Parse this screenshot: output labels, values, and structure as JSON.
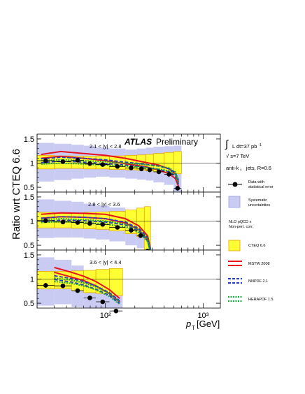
{
  "colors": {
    "data_marker": "#000000",
    "systematic_band": "#c9cbf3",
    "systematic_band_edge": "#9a9ee6",
    "cteq_band": "#ffff33",
    "cteq_band_edge": "#e8a000",
    "mstw": "#e8121f",
    "nnpdf": "#1f3fc4",
    "herapdf": "#11a83a"
  },
  "labels": {
    "ylabel": "Ratio wrt CTEQ 6.6",
    "xlabel_p": "p",
    "xlabel_sub": "T",
    "xlabel_unit": "[GeV]",
    "atlas": "ATLAS",
    "preliminary": "Preliminary",
    "lumi_integral": "∫",
    "lumi_text": "L dt=37 pb",
    "lumi_sup": "-1",
    "sqrt": "√",
    "energy": "s=7 TeV",
    "algo_prefix": "anti-k",
    "algo_sub": "t",
    "algo_suffix": "jets,  R=0.6",
    "nlo_line1": "NLO pQCD x",
    "nlo_line2": "Non-pert. corr."
  },
  "legend": {
    "data_line1": "Data with",
    "data_line2": "statistical error",
    "syst_line1": "Systematic",
    "syst_line2": "uncertainties",
    "cteq": "CTEQ 6.6",
    "mstw": "MSTW 2008",
    "nnpdf": "NNPDF 2.1",
    "hera": "HERAPDF 1.5"
  },
  "chart_data": {
    "type": "scatter",
    "x_scale": "log",
    "xlim": [
      20,
      1500
    ],
    "x_ticks": [
      "10²",
      "10³"
    ],
    "ylim": [
      0.4,
      1.6
    ],
    "y_ticks": [
      "0.5",
      "1",
      "1.5"
    ],
    "panels": [
      {
        "label": "2.1 < |y| < 2.8",
        "bins": [
          {
            "lo": 20,
            "hi": 30,
            "ratio": 1.05,
            "stat": 0.05,
            "syst": [
              0.62,
              1.42
            ],
            "cteq": [
              0.88,
              1.16
            ]
          },
          {
            "lo": 30,
            "hi": 45,
            "ratio": 1.03,
            "stat": 0.04,
            "syst": [
              0.65,
              1.4
            ],
            "cteq": [
              0.89,
              1.15
            ]
          },
          {
            "lo": 45,
            "hi": 60,
            "ratio": 1.06,
            "stat": 0.04,
            "syst": [
              0.68,
              1.38
            ],
            "cteq": [
              0.89,
              1.14
            ]
          },
          {
            "lo": 60,
            "hi": 80,
            "ratio": 0.99,
            "stat": 0.03,
            "syst": [
              0.7,
              1.36
            ],
            "cteq": [
              0.88,
              1.14
            ]
          },
          {
            "lo": 80,
            "hi": 110,
            "ratio": 0.97,
            "stat": 0.03,
            "syst": [
              0.72,
              1.32
            ],
            "cteq": [
              0.88,
              1.14
            ]
          },
          {
            "lo": 110,
            "hi": 160,
            "ratio": 0.93,
            "stat": 0.03,
            "syst": [
              0.7,
              1.3
            ],
            "cteq": [
              0.87,
              1.15
            ]
          },
          {
            "lo": 160,
            "hi": 210,
            "ratio": 0.9,
            "stat": 0.03,
            "syst": [
              0.68,
              1.28
            ],
            "cteq": [
              0.86,
              1.16
            ]
          },
          {
            "lo": 210,
            "hi": 260,
            "ratio": 0.88,
            "stat": 0.03,
            "syst": [
              0.66,
              1.3
            ],
            "cteq": [
              0.85,
              1.17
            ]
          },
          {
            "lo": 260,
            "hi": 310,
            "ratio": 0.86,
            "stat": 0.04,
            "syst": [
              0.64,
              1.32
            ],
            "cteq": [
              0.84,
              1.18
            ]
          },
          {
            "lo": 310,
            "hi": 400,
            "ratio": 0.82,
            "stat": 0.05,
            "syst": [
              0.6,
              1.34
            ],
            "cteq": [
              0.82,
              1.2
            ]
          },
          {
            "lo": 400,
            "hi": 500,
            "ratio": 0.77,
            "stat": 0.06,
            "syst": [
              0.55,
              1.35
            ],
            "cteq": [
              0.8,
              1.22
            ]
          },
          {
            "lo": 500,
            "hi": 600,
            "ratio": 0.48,
            "stat": 0.05,
            "syst": [
              0.4,
              1.36
            ],
            "cteq": [
              0.78,
              1.24
            ]
          }
        ],
        "curves": {
          "pt": [
            22,
            35,
            60,
            100,
            160,
            250,
            350,
            450,
            520,
            560
          ],
          "mstw_upper": [
            1.18,
            1.24,
            1.2,
            1.16,
            1.1,
            1.02,
            0.96,
            0.88,
            0.78,
            0.6
          ],
          "mstw_lower": [
            1.1,
            1.14,
            1.1,
            1.05,
            0.99,
            0.93,
            0.86,
            0.78,
            0.68,
            0.52
          ],
          "nnpdf_upper": [
            1.09,
            1.12,
            1.1,
            1.07,
            1.02,
            0.98,
            0.94,
            0.88,
            0.8,
            0.64
          ],
          "nnpdf_lower": [
            1.01,
            1.04,
            1.02,
            0.99,
            0.96,
            0.92,
            0.87,
            0.82,
            0.73,
            0.56
          ],
          "hera_upper": [
            1.05,
            1.07,
            1.05,
            1.03,
            1.0,
            0.97,
            0.94,
            0.9,
            0.82,
            0.66
          ],
          "hera_lower": [
            0.98,
            1.0,
            0.98,
            0.96,
            0.94,
            0.91,
            0.88,
            0.84,
            0.76,
            0.58
          ]
        }
      },
      {
        "label": "2.8 < |y| < 3.6",
        "bins": [
          {
            "lo": 20,
            "hi": 30,
            "ratio": 1.01,
            "stat": 0.05,
            "syst": [
              0.65,
              1.45
            ],
            "cteq": [
              0.86,
              1.18
            ]
          },
          {
            "lo": 30,
            "hi": 45,
            "ratio": 0.98,
            "stat": 0.04,
            "syst": [
              0.66,
              1.42
            ],
            "cteq": [
              0.86,
              1.17
            ]
          },
          {
            "lo": 45,
            "hi": 60,
            "ratio": 0.97,
            "stat": 0.04,
            "syst": [
              0.66,
              1.4
            ],
            "cteq": [
              0.85,
              1.17
            ]
          },
          {
            "lo": 60,
            "hi": 80,
            "ratio": 0.95,
            "stat": 0.03,
            "syst": [
              0.64,
              1.36
            ],
            "cteq": [
              0.84,
              1.18
            ]
          },
          {
            "lo": 80,
            "hi": 110,
            "ratio": 0.93,
            "stat": 0.03,
            "syst": [
              0.62,
              1.32
            ],
            "cteq": [
              0.83,
              1.19
            ]
          },
          {
            "lo": 110,
            "hi": 160,
            "ratio": 0.87,
            "stat": 0.03,
            "syst": [
              0.58,
              1.28
            ],
            "cteq": [
              0.8,
              1.2
            ]
          },
          {
            "lo": 160,
            "hi": 210,
            "ratio": 0.81,
            "stat": 0.04,
            "syst": [
              0.5,
              1.22
            ],
            "cteq": [
              0.74,
              1.23
            ]
          },
          {
            "lo": 210,
            "hi": 250,
            "ratio": 0.7,
            "stat": 0.05,
            "syst": [
              0.44,
              1.1
            ],
            "cteq": [
              0.68,
              1.27
            ]
          },
          {
            "lo": 250,
            "hi": 290,
            "ratio": 0.38,
            "stat": 0.05,
            "syst": [
              0.32,
              0.72
            ],
            "cteq": [
              0.4,
              1.3
            ]
          }
        ],
        "curves": {
          "pt": [
            22,
            35,
            60,
            100,
            160,
            220,
            270,
            290
          ],
          "mstw_upper": [
            1.14,
            1.17,
            1.16,
            1.14,
            1.05,
            0.9,
            0.7,
            0.42
          ],
          "mstw_lower": [
            1.06,
            1.09,
            1.08,
            1.05,
            0.96,
            0.82,
            0.62,
            0.36
          ],
          "nnpdf_upper": [
            1.06,
            1.09,
            1.08,
            1.05,
            0.98,
            0.85,
            0.66,
            0.4
          ],
          "nnpdf_lower": [
            0.99,
            1.02,
            1.01,
            0.98,
            0.92,
            0.79,
            0.6,
            0.34
          ],
          "hera_upper": [
            1.03,
            1.05,
            1.03,
            1.0,
            0.94,
            0.82,
            0.64,
            0.38
          ],
          "hera_lower": [
            0.97,
            0.99,
            0.97,
            0.94,
            0.88,
            0.76,
            0.58,
            0.33
          ]
        }
      },
      {
        "label": "3.6 < |y| < 4.4",
        "bins": [
          {
            "lo": 20,
            "hi": 30,
            "ratio": 0.87,
            "stat": 0.05,
            "syst": [
              0.45,
              1.45
            ],
            "cteq": [
              0.8,
              1.16
            ]
          },
          {
            "lo": 30,
            "hi": 45,
            "ratio": 0.86,
            "stat": 0.04,
            "syst": [
              0.48,
              1.4
            ],
            "cteq": [
              0.8,
              1.16
            ]
          },
          {
            "lo": 45,
            "hi": 60,
            "ratio": 0.76,
            "stat": 0.04,
            "syst": [
              0.42,
              1.28
            ],
            "cteq": [
              0.76,
              1.17
            ]
          },
          {
            "lo": 60,
            "hi": 80,
            "ratio": 0.61,
            "stat": 0.04,
            "syst": [
              0.36,
              1.14
            ],
            "cteq": [
              0.72,
              1.18
            ]
          },
          {
            "lo": 80,
            "hi": 110,
            "ratio": 0.53,
            "stat": 0.04,
            "syst": [
              0.32,
              1.02
            ],
            "cteq": [
              0.7,
              1.2
            ]
          },
          {
            "lo": 110,
            "hi": 150,
            "ratio": 0.34,
            "stat": 0.04,
            "syst": [
              0.28,
              0.8
            ],
            "cteq": [
              0.66,
              1.22
            ]
          }
        ],
        "curves": {
          "pt": [
            30,
            45,
            60,
            80,
            110,
            140
          ],
          "mstw_upper": [
            1.24,
            1.14,
            1.06,
            0.95,
            0.78,
            0.6
          ],
          "mstw_lower": [
            1.14,
            1.04,
            0.97,
            0.86,
            0.7,
            0.53
          ],
          "nnpdf_upper": [
            1.07,
            1.01,
            0.95,
            0.86,
            0.72,
            0.55
          ],
          "nnpdf_lower": [
            0.99,
            0.94,
            0.88,
            0.79,
            0.66,
            0.5
          ],
          "hera_upper": [
            1.02,
            0.98,
            0.92,
            0.84,
            0.7,
            0.53
          ],
          "hera_lower": [
            0.95,
            0.91,
            0.86,
            0.78,
            0.64,
            0.48
          ]
        }
      }
    ]
  }
}
